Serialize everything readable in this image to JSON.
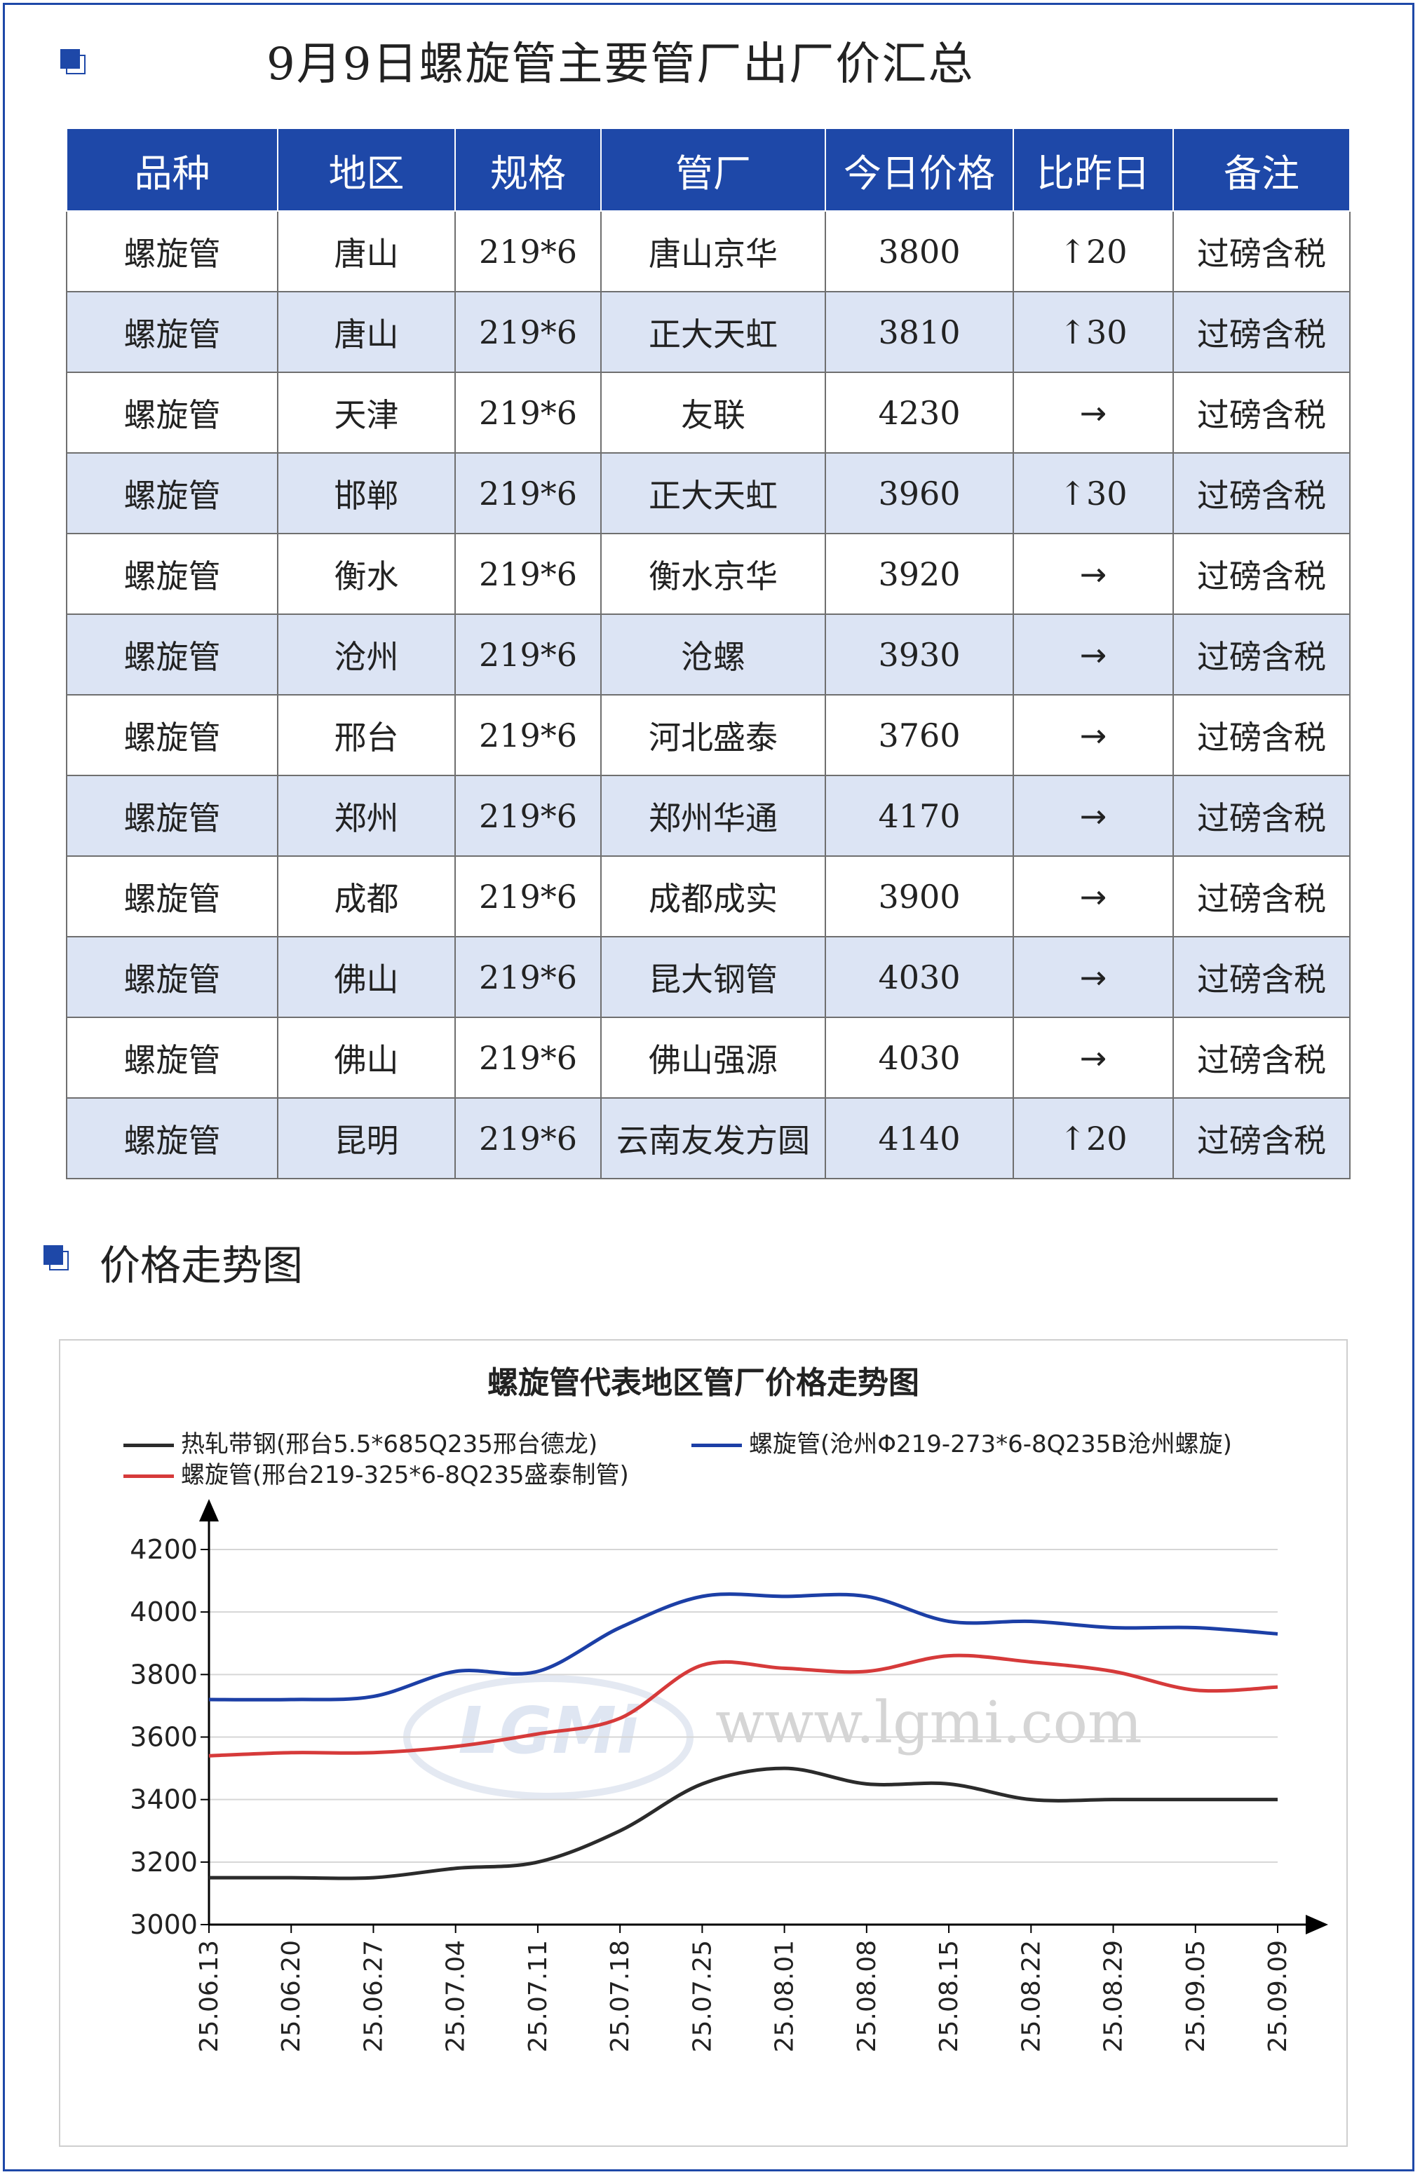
{
  "page_title": "9月9日螺旋管主要管厂出厂价汇总",
  "table": {
    "headers": [
      "品种",
      "地区",
      "规格",
      "管厂",
      "今日价格",
      "比昨日",
      "备注"
    ],
    "rows": [
      {
        "product": "螺旋管",
        "region": "唐山",
        "spec": "219*6",
        "mill": "唐山京华",
        "price": "3800",
        "change": "↑20",
        "trend": "up",
        "note": "过磅含税"
      },
      {
        "product": "螺旋管",
        "region": "唐山",
        "spec": "219*6",
        "mill": "正大天虹",
        "price": "3810",
        "change": "↑30",
        "trend": "up",
        "note": "过磅含税"
      },
      {
        "product": "螺旋管",
        "region": "天津",
        "spec": "219*6",
        "mill": "友联",
        "price": "4230",
        "change": "→",
        "trend": "flat",
        "note": "过磅含税"
      },
      {
        "product": "螺旋管",
        "region": "邯郸",
        "spec": "219*6",
        "mill": "正大天虹",
        "price": "3960",
        "change": "↑30",
        "trend": "up",
        "note": "过磅含税"
      },
      {
        "product": "螺旋管",
        "region": "衡水",
        "spec": "219*6",
        "mill": "衡水京华",
        "price": "3920",
        "change": "→",
        "trend": "flat",
        "note": "过磅含税"
      },
      {
        "product": "螺旋管",
        "region": "沧州",
        "spec": "219*6",
        "mill": "沧螺",
        "price": "3930",
        "change": "→",
        "trend": "flat",
        "note": "过磅含税"
      },
      {
        "product": "螺旋管",
        "region": "邢台",
        "spec": "219*6",
        "mill": "河北盛泰",
        "price": "3760",
        "change": "→",
        "trend": "flat",
        "note": "过磅含税"
      },
      {
        "product": "螺旋管",
        "region": "郑州",
        "spec": "219*6",
        "mill": "郑州华通",
        "price": "4170",
        "change": "→",
        "trend": "flat",
        "note": "过磅含税"
      },
      {
        "product": "螺旋管",
        "region": "成都",
        "spec": "219*6",
        "mill": "成都成实",
        "price": "3900",
        "change": "→",
        "trend": "flat",
        "note": "过磅含税"
      },
      {
        "product": "螺旋管",
        "region": "佛山",
        "spec": "219*6",
        "mill": "昆大钢管",
        "price": "4030",
        "change": "→",
        "trend": "flat",
        "note": "过磅含税"
      },
      {
        "product": "螺旋管",
        "region": "佛山",
        "spec": "219*6",
        "mill": "佛山强源",
        "price": "4030",
        "change": "→",
        "trend": "flat",
        "note": "过磅含税"
      },
      {
        "product": "螺旋管",
        "region": "昆明",
        "spec": "219*6",
        "mill": "云南友发方圆",
        "price": "4140",
        "change": "↑20",
        "trend": "up",
        "note": "过磅含税"
      }
    ]
  },
  "section_title": "价格走势图",
  "watermark": {
    "logo": "LGMi",
    "url": "www.lgmi.com"
  },
  "colors": {
    "brand_blue": "#1e48a8",
    "row_alt": "#dce4f4",
    "up_red": "#d8070e",
    "series_black": "#2b2b2b",
    "series_blue": "#1c3fa6",
    "series_red": "#d63a3a"
  },
  "chart_data": {
    "type": "line",
    "title": "螺旋管代表地区管厂价格走势图",
    "x": [
      "25.06.13",
      "25.06.20",
      "25.06.27",
      "25.07.04",
      "25.07.11",
      "25.07.18",
      "25.07.25",
      "25.08.01",
      "25.08.08",
      "25.08.15",
      "25.08.22",
      "25.08.29",
      "25.09.05",
      "25.09.09"
    ],
    "ylim": [
      3000,
      4200
    ],
    "yticks": [
      3000,
      3200,
      3400,
      3600,
      3800,
      4000,
      4200
    ],
    "grid": true,
    "legend_position": "top",
    "series": [
      {
        "name": "热轧带钢(邢台5.5*685Q235邢台德龙)",
        "color": "#2b2b2b",
        "values": [
          3150,
          3150,
          3150,
          3180,
          3200,
          3300,
          3450,
          3500,
          3450,
          3450,
          3400,
          3400,
          3400,
          3400
        ]
      },
      {
        "name": "螺旋管(沧州Φ219-273*6-8Q235B沧州螺旋)",
        "color": "#1c3fa6",
        "values": [
          3720,
          3720,
          3730,
          3810,
          3810,
          3950,
          4050,
          4050,
          4050,
          3970,
          3970,
          3950,
          3950,
          3930
        ]
      },
      {
        "name": "螺旋管(邢台219-325*6-8Q235盛泰制管)",
        "color": "#d63a3a",
        "values": [
          3540,
          3550,
          3550,
          3570,
          3610,
          3660,
          3830,
          3820,
          3810,
          3860,
          3840,
          3810,
          3750,
          3760
        ]
      }
    ]
  }
}
